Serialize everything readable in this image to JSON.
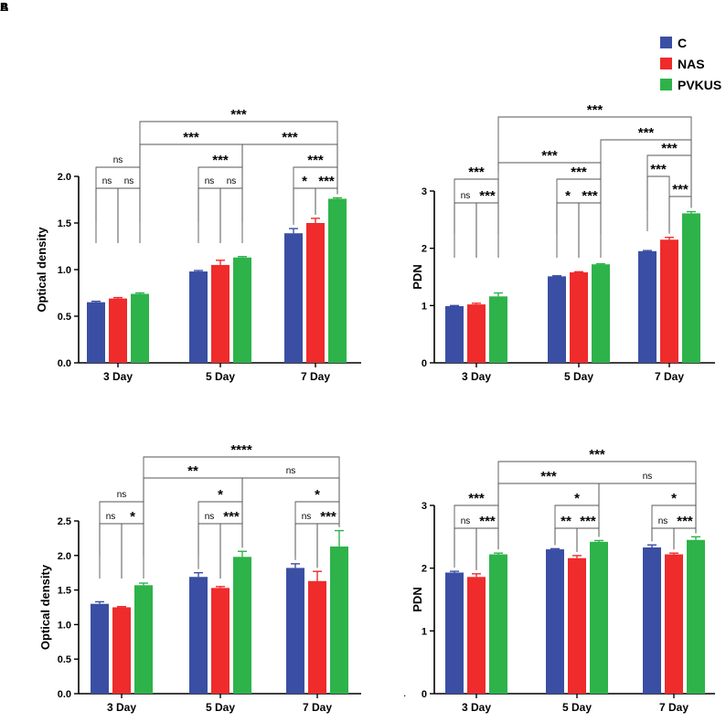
{
  "corner_labels": [
    "A",
    "B"
  ],
  "stray_mark": ".",
  "legend": {
    "items": [
      {
        "name": "C",
        "color": "#3a4fa3"
      },
      {
        "name": "NAS",
        "color": "#ef2b2b"
      },
      {
        "name": "PVKUS",
        "color": "#2db34a"
      }
    ]
  },
  "chart_data": [
    {
      "type": "bar",
      "ylabel": "Optical density",
      "xlabel": "",
      "categories": [
        "3 Day",
        "5 Day",
        "7 Day"
      ],
      "ylim": [
        0,
        2.0
      ],
      "yticks": [
        "0.0",
        "0.5",
        "1.0",
        "1.5",
        "2.0"
      ],
      "series": [
        {
          "name": "C",
          "values": [
            0.65,
            0.98,
            1.39
          ],
          "errors": [
            0.01,
            0.01,
            0.05
          ]
        },
        {
          "name": "NAS",
          "values": [
            0.69,
            1.05,
            1.5
          ],
          "errors": [
            0.01,
            0.05,
            0.05
          ]
        },
        {
          "name": "PVKUS",
          "values": [
            0.74,
            1.13,
            1.76
          ],
          "errors": [
            0.01,
            0.01,
            0.01
          ]
        }
      ],
      "annotations": [
        {
          "text": "ns",
          "from": [
            0,
            0
          ],
          "to": [
            0,
            1
          ]
        },
        {
          "text": "ns",
          "from": [
            0,
            1
          ],
          "to": [
            0,
            2
          ]
        },
        {
          "text": "ns",
          "from": [
            0,
            0
          ],
          "to": [
            0,
            2
          ]
        },
        {
          "text": "ns",
          "from": [
            1,
            0
          ],
          "to": [
            1,
            1
          ]
        },
        {
          "text": "ns",
          "from": [
            1,
            1
          ],
          "to": [
            1,
            2
          ]
        },
        {
          "text": "***",
          "from": [
            1,
            0
          ],
          "to": [
            1,
            2
          ]
        },
        {
          "text": "*",
          "from": [
            2,
            0
          ],
          "to": [
            2,
            1
          ]
        },
        {
          "text": "***",
          "from": [
            2,
            1
          ],
          "to": [
            2,
            2
          ]
        },
        {
          "text": "***",
          "from": [
            2,
            0
          ],
          "to": [
            2,
            2
          ]
        },
        {
          "text": "***",
          "from": [
            0,
            2
          ],
          "to": [
            1,
            2
          ]
        },
        {
          "text": "***",
          "from": [
            1,
            2
          ],
          "to": [
            2,
            2
          ]
        },
        {
          "text": "***",
          "from": [
            0,
            2
          ],
          "to": [
            2,
            2
          ]
        }
      ]
    },
    {
      "type": "bar",
      "ylabel": "PDN",
      "xlabel": "",
      "categories": [
        "3 Day",
        "5 Day",
        "7 Day"
      ],
      "ylim": [
        0,
        3
      ],
      "yticks": [
        "0",
        "1",
        "2",
        "3"
      ],
      "series": [
        {
          "name": "C",
          "values": [
            0.99,
            1.51,
            1.95
          ],
          "errors": [
            0.01,
            0.01,
            0.01
          ]
        },
        {
          "name": "NAS",
          "values": [
            1.02,
            1.58,
            2.15
          ],
          "errors": [
            0.02,
            0.01,
            0.04
          ]
        },
        {
          "name": "PVKUS",
          "values": [
            1.16,
            1.72,
            2.61
          ],
          "errors": [
            0.06,
            0.01,
            0.03
          ]
        }
      ],
      "annotations": [
        {
          "text": "ns",
          "from": [
            0,
            0
          ],
          "to": [
            0,
            1
          ]
        },
        {
          "text": "***",
          "from": [
            0,
            1
          ],
          "to": [
            0,
            2
          ]
        },
        {
          "text": "***",
          "from": [
            0,
            0
          ],
          "to": [
            0,
            2
          ]
        },
        {
          "text": "*",
          "from": [
            1,
            0
          ],
          "to": [
            1,
            1
          ]
        },
        {
          "text": "***",
          "from": [
            1,
            1
          ],
          "to": [
            1,
            2
          ]
        },
        {
          "text": "***",
          "from": [
            1,
            0
          ],
          "to": [
            1,
            2
          ]
        },
        {
          "text": "***",
          "from": [
            2,
            1
          ],
          "to": [
            2,
            2
          ]
        },
        {
          "text": "***",
          "from": [
            2,
            0
          ],
          "to": [
            2,
            1
          ]
        },
        {
          "text": "***",
          "from": [
            2,
            0
          ],
          "to": [
            2,
            2
          ]
        },
        {
          "text": "***",
          "from": [
            0,
            2
          ],
          "to": [
            1,
            2
          ]
        },
        {
          "text": "***",
          "from": [
            1,
            2
          ],
          "to": [
            2,
            2
          ]
        },
        {
          "text": "***",
          "from": [
            0,
            2
          ],
          "to": [
            2,
            2
          ]
        }
      ]
    },
    {
      "type": "bar",
      "ylabel": "Optical density",
      "xlabel": "",
      "categories": [
        "3 Day",
        "5 Day",
        "7 Day"
      ],
      "ylim": [
        0,
        2.5
      ],
      "yticks": [
        "0.0",
        "0.5",
        "1.0",
        "1.5",
        "2.0",
        "2.5"
      ],
      "series": [
        {
          "name": "C",
          "values": [
            1.3,
            1.69,
            1.82
          ],
          "errors": [
            0.03,
            0.06,
            0.06
          ]
        },
        {
          "name": "NAS",
          "values": [
            1.25,
            1.53,
            1.63
          ],
          "errors": [
            0.01,
            0.02,
            0.14
          ]
        },
        {
          "name": "PVKUS",
          "values": [
            1.57,
            1.98,
            2.13
          ],
          "errors": [
            0.03,
            0.08,
            0.23
          ]
        }
      ],
      "annotations": [
        {
          "text": "ns",
          "from": [
            0,
            0
          ],
          "to": [
            0,
            1
          ]
        },
        {
          "text": "*",
          "from": [
            0,
            1
          ],
          "to": [
            0,
            2
          ]
        },
        {
          "text": "ns",
          "from": [
            0,
            0
          ],
          "to": [
            0,
            2
          ]
        },
        {
          "text": "ns",
          "from": [
            1,
            0
          ],
          "to": [
            1,
            1
          ]
        },
        {
          "text": "***",
          "from": [
            1,
            1
          ],
          "to": [
            1,
            2
          ]
        },
        {
          "text": "*",
          "from": [
            1,
            0
          ],
          "to": [
            1,
            2
          ]
        },
        {
          "text": "ns",
          "from": [
            2,
            0
          ],
          "to": [
            2,
            1
          ]
        },
        {
          "text": "***",
          "from": [
            2,
            1
          ],
          "to": [
            2,
            2
          ]
        },
        {
          "text": "*",
          "from": [
            2,
            0
          ],
          "to": [
            2,
            2
          ]
        },
        {
          "text": "**",
          "from": [
            0,
            2
          ],
          "to": [
            1,
            2
          ]
        },
        {
          "text": "ns",
          "from": [
            1,
            2
          ],
          "to": [
            2,
            2
          ]
        },
        {
          "text": "****",
          "from": [
            0,
            2
          ],
          "to": [
            2,
            2
          ]
        }
      ]
    },
    {
      "type": "bar",
      "ylabel": "PDN",
      "xlabel": "",
      "categories": [
        "3 Day",
        "5 Day",
        "7 Day"
      ],
      "ylim": [
        0,
        3
      ],
      "yticks": [
        "0",
        "1",
        "2",
        "3"
      ],
      "series": [
        {
          "name": "C",
          "values": [
            1.93,
            2.3,
            2.33
          ],
          "errors": [
            0.02,
            0.01,
            0.04
          ]
        },
        {
          "name": "NAS",
          "values": [
            1.86,
            2.16,
            2.22
          ],
          "errors": [
            0.05,
            0.04,
            0.02
          ]
        },
        {
          "name": "PVKUS",
          "values": [
            2.22,
            2.42,
            2.45
          ],
          "errors": [
            0.02,
            0.02,
            0.05
          ]
        }
      ],
      "annotations": [
        {
          "text": "ns",
          "from": [
            0,
            0
          ],
          "to": [
            0,
            1
          ]
        },
        {
          "text": "***",
          "from": [
            0,
            1
          ],
          "to": [
            0,
            2
          ]
        },
        {
          "text": "***",
          "from": [
            0,
            0
          ],
          "to": [
            0,
            2
          ]
        },
        {
          "text": "**",
          "from": [
            1,
            0
          ],
          "to": [
            1,
            1
          ]
        },
        {
          "text": "***",
          "from": [
            1,
            1
          ],
          "to": [
            1,
            2
          ]
        },
        {
          "text": "*",
          "from": [
            1,
            0
          ],
          "to": [
            1,
            2
          ]
        },
        {
          "text": "ns",
          "from": [
            2,
            0
          ],
          "to": [
            2,
            1
          ]
        },
        {
          "text": "***",
          "from": [
            2,
            1
          ],
          "to": [
            2,
            2
          ]
        },
        {
          "text": "*",
          "from": [
            2,
            0
          ],
          "to": [
            2,
            2
          ]
        },
        {
          "text": "***",
          "from": [
            0,
            2
          ],
          "to": [
            1,
            2
          ]
        },
        {
          "text": "ns",
          "from": [
            1,
            2
          ],
          "to": [
            2,
            2
          ]
        },
        {
          "text": "***",
          "from": [
            0,
            2
          ],
          "to": [
            2,
            2
          ]
        }
      ]
    }
  ]
}
